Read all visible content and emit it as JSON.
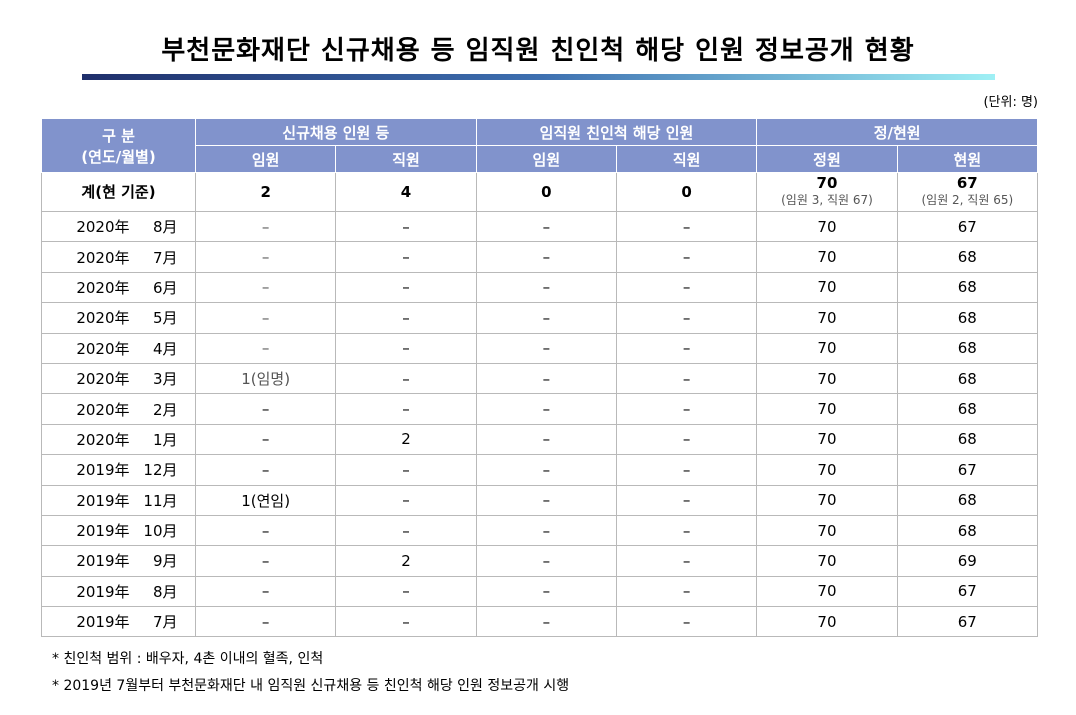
{
  "header": {
    "title": "부천문화재단 신규채용 등 임직원 친인척 해당 인원 정보공개 현황",
    "unit": "(단위: 명)"
  },
  "table": {
    "head": {
      "period": "구 분",
      "period_sub": "(연도/월별)",
      "groups": [
        "신규채용 인원 등",
        "임직원 친인척 해당 인원",
        "정/현원"
      ],
      "subcols": [
        "임원",
        "직원",
        "임원",
        "직원",
        "정원",
        "현원"
      ]
    },
    "total": {
      "label": "계(현 기준)",
      "cells": [
        "2",
        "4",
        "0",
        "0",
        "70",
        "67"
      ],
      "subs": [
        "(임원 3, 직원 67)",
        "(임원 2, 직원 65)"
      ]
    },
    "rows": [
      [
        "2020年",
        "8月",
        "–",
        "–",
        "–",
        "–",
        "70",
        "67"
      ],
      [
        "2020年",
        "7月",
        "–",
        "–",
        "–",
        "–",
        "70",
        "68"
      ],
      [
        "2020年",
        "6月",
        "–",
        "–",
        "–",
        "–",
        "70",
        "68"
      ],
      [
        "2020年",
        "5月",
        "–",
        "–",
        "–",
        "–",
        "70",
        "68"
      ],
      [
        "2020年",
        "4月",
        "–",
        "–",
        "–",
        "–",
        "70",
        "68"
      ],
      [
        "2020年",
        "3月",
        "1(임명)",
        "–",
        "–",
        "–",
        "70",
        "68"
      ],
      [
        "2020年",
        "2月",
        "–",
        "–",
        "–",
        "–",
        "70",
        "68"
      ],
      [
        "2020年",
        "1月",
        "–",
        "2",
        "–",
        "–",
        "70",
        "68"
      ],
      [
        "2019年",
        "12月",
        "–",
        "–",
        "–",
        "–",
        "70",
        "67"
      ],
      [
        "2019年",
        "11月",
        "1(연임)",
        "–",
        "–",
        "–",
        "70",
        "68"
      ],
      [
        "2019年",
        "10月",
        "–",
        "–",
        "–",
        "–",
        "70",
        "68"
      ],
      [
        "2019年",
        "9月",
        "–",
        "2",
        "–",
        "–",
        "70",
        "69"
      ],
      [
        "2019年",
        "8月",
        "–",
        "–",
        "–",
        "–",
        "70",
        "67"
      ],
      [
        "2019年",
        "7月",
        "–",
        "–",
        "–",
        "–",
        "70",
        "67"
      ]
    ]
  },
  "notes": [
    "* 친인척 범위 : 배우자, 4촌 이내의 혈족, 인척",
    "* 2019년 7월부터 부천문화재단 내 임직원 신규채용 등 친인척 해당 인원 정보공개 시행"
  ]
}
